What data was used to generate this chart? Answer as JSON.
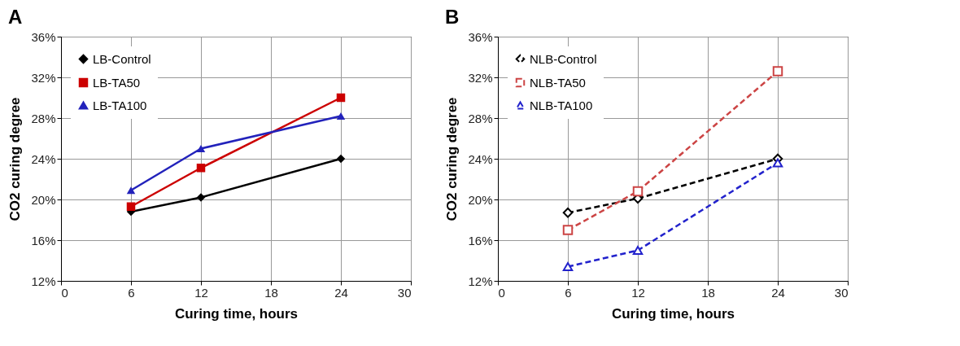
{
  "chart_data": [
    {
      "type": "line",
      "title": "A",
      "xlabel": "Curing time, hours",
      "ylabel": "CO2 curing degree",
      "x": [
        6,
        12,
        24
      ],
      "series": [
        {
          "name": "LB-Control",
          "color": "#000000",
          "marker": "diamond",
          "values": [
            18.8,
            20.2,
            24.0
          ]
        },
        {
          "name": "LB-TA50",
          "color": "#cc0000",
          "marker": "square",
          "values": [
            19.3,
            23.1,
            30.0
          ]
        },
        {
          "name": "LB-TA100",
          "color": "#2222bb",
          "marker": "triangle",
          "values": [
            20.9,
            25.0,
            28.2
          ]
        }
      ],
      "xlim": [
        0,
        30
      ],
      "xticks": [
        0,
        6,
        12,
        18,
        24,
        30
      ],
      "ylim": [
        12,
        36
      ],
      "yticks": [
        {
          "value": 12,
          "label": "12%"
        },
        {
          "value": 16,
          "label": "16%"
        },
        {
          "value": 20,
          "label": "20%"
        },
        {
          "value": 24,
          "label": "24%"
        },
        {
          "value": 28,
          "label": "28%"
        },
        {
          "value": 32,
          "label": "32%"
        },
        {
          "value": 36,
          "label": "36%"
        }
      ],
      "grid": true,
      "legend": "top left",
      "line_style": "solid"
    },
    {
      "type": "line",
      "title": "B",
      "xlabel": "Curing time, hours",
      "ylabel": "CO2 curing degree",
      "x": [
        6,
        12,
        24
      ],
      "series": [
        {
          "name": "NLB-Control",
          "color": "#000000",
          "marker": "diamond",
          "values": [
            18.7,
            20.1,
            24.0
          ]
        },
        {
          "name": "NLB-TA50",
          "color": "#cc4444",
          "marker": "square",
          "values": [
            17.0,
            20.8,
            32.6
          ]
        },
        {
          "name": "NLB-TA100",
          "color": "#2222cc",
          "marker": "triangle",
          "values": [
            13.4,
            15.0,
            23.6
          ]
        }
      ],
      "xlim": [
        0,
        30
      ],
      "xticks": [
        0,
        6,
        12,
        18,
        24,
        30
      ],
      "ylim": [
        12,
        36
      ],
      "yticks": [
        {
          "value": 12,
          "label": "12%"
        },
        {
          "value": 16,
          "label": "16%"
        },
        {
          "value": 20,
          "label": "20%"
        },
        {
          "value": 24,
          "label": "24%"
        },
        {
          "value": 28,
          "label": "28%"
        },
        {
          "value": 32,
          "label": "32%"
        },
        {
          "value": 36,
          "label": "36%"
        }
      ],
      "grid": true,
      "legend": "top left",
      "line_style": "dashed"
    }
  ]
}
